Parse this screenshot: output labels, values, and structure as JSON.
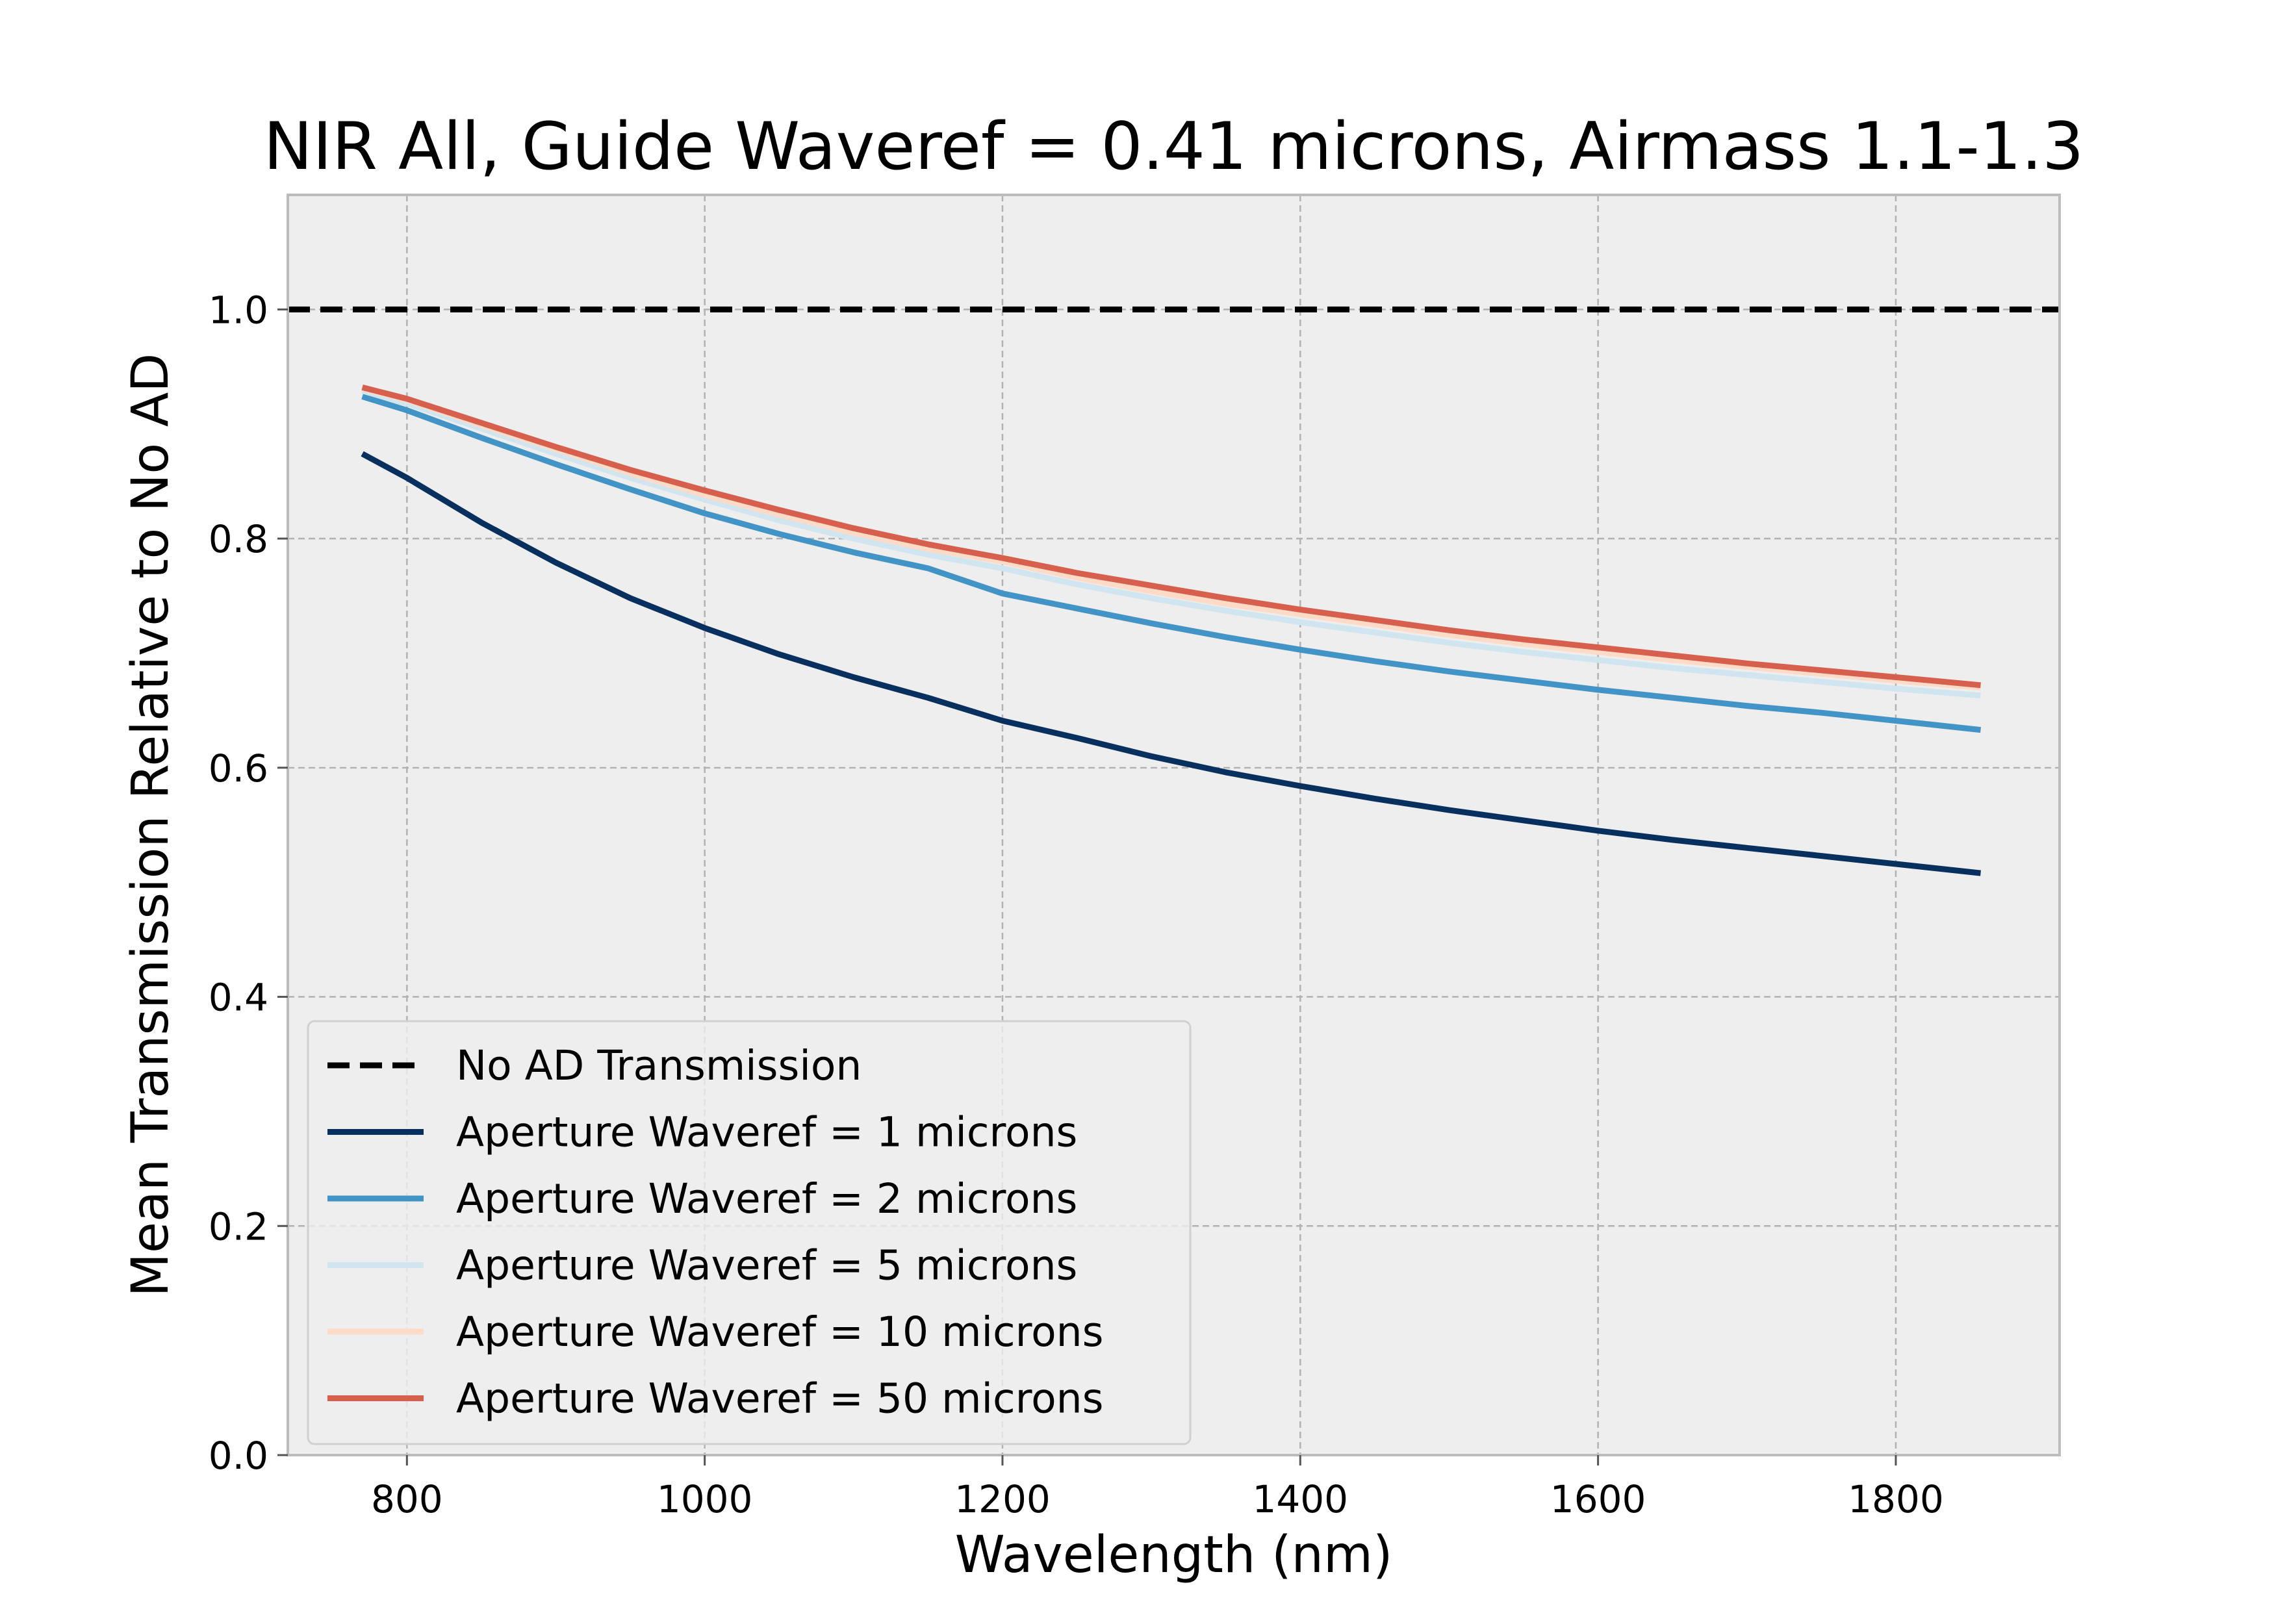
{
  "chart_data": {
    "type": "line",
    "title": "NIR All, Guide Waveref = 0.41 microns, Airmass 1.1-1.3",
    "xlabel": "Wavelength (nm)",
    "ylabel": "Mean Transmission Relative to No AD",
    "xlim": [
      720,
      1910
    ],
    "ylim": [
      0.0,
      1.1
    ],
    "xticks": [
      800,
      1000,
      1200,
      1400,
      1600,
      1800
    ],
    "yticks": [
      0.0,
      0.2,
      0.4,
      0.6,
      0.8,
      1.0
    ],
    "ytick_labels": [
      "0.0",
      "0.2",
      "0.4",
      "0.6",
      "0.8",
      "1.0"
    ],
    "grid": true,
    "background": "#eeeeee",
    "legend_placement": "lower-left",
    "series": [
      {
        "name": "No AD Transmission",
        "color": "#000000",
        "dashed": true,
        "x": [
          720,
          1910
        ],
        "y": [
          1.0,
          1.0
        ]
      },
      {
        "name": "Aperture Waveref = 1 microns",
        "color": "#08305e",
        "x": [
          770,
          800,
          850,
          900,
          950,
          1000,
          1050,
          1100,
          1150,
          1200,
          1250,
          1300,
          1350,
          1400,
          1450,
          1500,
          1550,
          1600,
          1650,
          1700,
          1750,
          1800,
          1857
        ],
        "y": [
          0.874,
          0.853,
          0.814,
          0.779,
          0.748,
          0.722,
          0.699,
          0.679,
          0.661,
          0.641,
          0.626,
          0.61,
          0.596,
          0.584,
          0.573,
          0.563,
          0.554,
          0.545,
          0.537,
          0.53,
          0.523,
          0.516,
          0.508
        ]
      },
      {
        "name": "Aperture Waveref = 2 microns",
        "color": "#4394c6",
        "x": [
          770,
          800,
          850,
          900,
          950,
          1000,
          1050,
          1100,
          1150,
          1200,
          1250,
          1300,
          1350,
          1400,
          1450,
          1500,
          1550,
          1600,
          1650,
          1700,
          1750,
          1800,
          1857
        ],
        "y": [
          0.924,
          0.912,
          0.888,
          0.865,
          0.843,
          0.822,
          0.804,
          0.788,
          0.774,
          0.752,
          0.739,
          0.726,
          0.714,
          0.703,
          0.693,
          0.684,
          0.676,
          0.668,
          0.661,
          0.654,
          0.648,
          0.641,
          0.633
        ]
      },
      {
        "name": "Aperture Waveref = 5 microns",
        "color": "#d1e5f0",
        "x": [
          770,
          800,
          850,
          900,
          950,
          1000,
          1050,
          1100,
          1150,
          1200,
          1250,
          1300,
          1350,
          1400,
          1450,
          1500,
          1550,
          1600,
          1650,
          1700,
          1750,
          1800,
          1857
        ],
        "y": [
          0.929,
          0.918,
          0.896,
          0.874,
          0.853,
          0.834,
          0.816,
          0.8,
          0.786,
          0.774,
          0.76,
          0.748,
          0.737,
          0.727,
          0.718,
          0.709,
          0.701,
          0.694,
          0.687,
          0.681,
          0.675,
          0.669,
          0.663
        ]
      },
      {
        "name": "Aperture Waveref = 10 microns",
        "color": "#fddbc7",
        "x": [
          770,
          800,
          850,
          900,
          950,
          1000,
          1050,
          1100,
          1150,
          1200,
          1250,
          1300,
          1350,
          1400,
          1450,
          1500,
          1550,
          1600,
          1650,
          1700,
          1750,
          1800,
          1857
        ],
        "y": [
          0.931,
          0.921,
          0.899,
          0.878,
          0.857,
          0.838,
          0.821,
          0.805,
          0.791,
          0.78,
          0.766,
          0.754,
          0.743,
          0.734,
          0.725,
          0.716,
          0.708,
          0.701,
          0.694,
          0.688,
          0.682,
          0.676,
          0.67
        ]
      },
      {
        "name": "Aperture Waveref = 50 microns",
        "color": "#d6604d",
        "x": [
          770,
          800,
          850,
          900,
          950,
          1000,
          1050,
          1100,
          1150,
          1200,
          1250,
          1300,
          1350,
          1400,
          1450,
          1500,
          1550,
          1600,
          1650,
          1700,
          1750,
          1800,
          1857
        ],
        "y": [
          0.932,
          0.922,
          0.901,
          0.88,
          0.86,
          0.842,
          0.825,
          0.809,
          0.795,
          0.783,
          0.77,
          0.759,
          0.748,
          0.738,
          0.729,
          0.72,
          0.712,
          0.705,
          0.698,
          0.691,
          0.685,
          0.679,
          0.672
        ]
      }
    ]
  }
}
